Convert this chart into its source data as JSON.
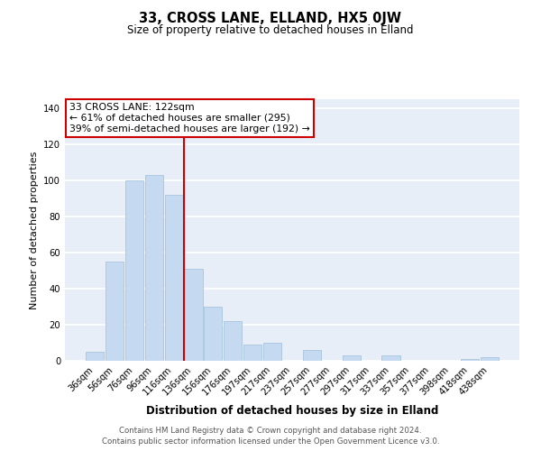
{
  "title": "33, CROSS LANE, ELLAND, HX5 0JW",
  "subtitle": "Size of property relative to detached houses in Elland",
  "xlabel": "Distribution of detached houses by size in Elland",
  "ylabel": "Number of detached properties",
  "bar_labels": [
    "36sqm",
    "56sqm",
    "76sqm",
    "96sqm",
    "116sqm",
    "136sqm",
    "156sqm",
    "176sqm",
    "197sqm",
    "217sqm",
    "237sqm",
    "257sqm",
    "277sqm",
    "297sqm",
    "317sqm",
    "337sqm",
    "357sqm",
    "377sqm",
    "398sqm",
    "418sqm",
    "438sqm"
  ],
  "bar_values": [
    5,
    55,
    100,
    103,
    92,
    51,
    30,
    22,
    9,
    10,
    0,
    6,
    0,
    3,
    0,
    3,
    0,
    0,
    0,
    1,
    2
  ],
  "bar_color": "#c5d9f0",
  "bar_edge_color": "#a8c4e0",
  "vline_x_idx": 4.5,
  "vline_color": "#cc0000",
  "ylim": [
    0,
    145
  ],
  "yticks": [
    0,
    20,
    40,
    60,
    80,
    100,
    120,
    140
  ],
  "annotation_line1": "33 CROSS LANE: 122sqm",
  "annotation_line2": "← 61% of detached houses are smaller (295)",
  "annotation_line3": "39% of semi-detached houses are larger (192) →",
  "annotation_box_edge": "#cc0000",
  "footer_line1": "Contains HM Land Registry data © Crown copyright and database right 2024.",
  "footer_line2": "Contains public sector information licensed under the Open Government Licence v3.0.",
  "fig_background": "#ffffff",
  "plot_bg_color": "#e8eef8"
}
